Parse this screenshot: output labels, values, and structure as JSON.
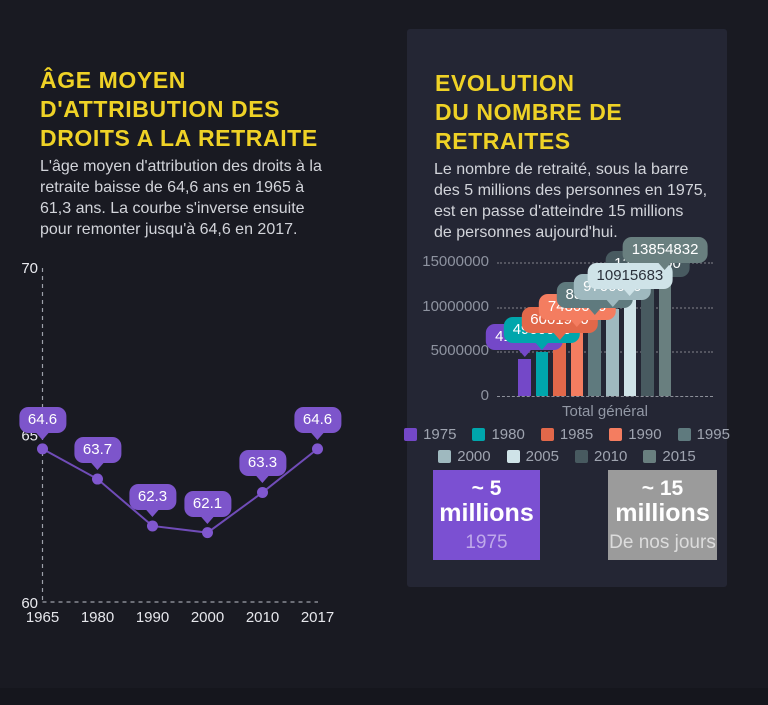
{
  "page": {
    "bg": "#191a22",
    "card_bg": "#242634",
    "footer_bg": "#15161d",
    "accent_yellow": "#efd226"
  },
  "left_section": {
    "title_lines": [
      "ÂGE MOYEN",
      "D'ATTRIBUTION DES",
      "DROITS A LA RETRAITE"
    ],
    "paragraph_lines": [
      "L'âge moyen d'attribution des droits à la",
      "retraite baisse de 64,6 ans en 1965 à",
      "61,3 ans. La courbe s'inverse ensuite",
      "pour remonter jusqu'à 64,6 en 2017."
    ]
  },
  "right_section": {
    "title_lines": [
      "EVOLUTION",
      "DU NOMBRE DE",
      "RETRAITES"
    ],
    "paragraph_lines": [
      "Le nombre de retraité, sous la barre",
      "des 5 millions des personnes en 1975,",
      "est en passe d'atteindre 15 millions",
      "de personnes aujourd'hui."
    ],
    "stat_boxes": [
      {
        "line1": "~ 5",
        "line2": "millions",
        "caption": "1975",
        "bg": "#7b50d2",
        "caption_color": "#bfa9ea"
      },
      {
        "line1": "~ 15",
        "line2": "millions",
        "caption": "De nos jours",
        "bg": "#9b9b9b",
        "caption_color": "#dcdcdc"
      }
    ]
  },
  "chart_data": [
    {
      "type": "line",
      "title": "Âge moyen d'attribution des droits à la retraite",
      "categories": [
        "1965",
        "1980",
        "1990",
        "2000",
        "2010",
        "2017"
      ],
      "values": [
        64.6,
        63.7,
        62.3,
        62.1,
        63.3,
        64.6
      ],
      "point_labels": [
        "64.6",
        "63.7",
        "62.3",
        "62.1",
        "63.3",
        "64.6"
      ],
      "yticks": [
        60,
        65,
        70
      ],
      "ylim": [
        60,
        70
      ],
      "line_color": "#7a52c9",
      "point_color": "#8057cf",
      "label_bg": "#7d55cb",
      "grid": "dashed-axes-only",
      "legend_position": "none"
    },
    {
      "type": "bar",
      "title": "Evolution du nombre de retraites",
      "categories": [
        "1975",
        "1980",
        "1985",
        "1990",
        "1995",
        "2000",
        "2005",
        "2010",
        "2015"
      ],
      "values": [
        4100000,
        4900000,
        6001900,
        7480000,
        8800000,
        9700000,
        10915683,
        12300000,
        13854832
      ],
      "value_labels": [
        "4100000",
        "4900000",
        "6001900",
        "7480000",
        "8800000",
        "9700000",
        "10915683",
        "12300000",
        "13854832"
      ],
      "colors": [
        "#7448c8",
        "#00a6ac",
        "#e2684a",
        "#f47d60",
        "#5f7a7e",
        "#9fb9bf",
        "#cfe3e8",
        "#485a60",
        "#697f7f"
      ],
      "xlabel": "Total général",
      "ylabel": "",
      "yticks": [
        0,
        5000000,
        10000000,
        15000000
      ],
      "ytick_labels": [
        "0",
        "5000000",
        "10000000",
        "15000000"
      ],
      "ylim": [
        0,
        16100000
      ],
      "grid": "dotted-horizontal",
      "legend_position": "bottom",
      "legend_rows": [
        [
          "1975",
          "1980",
          "1985",
          "1990",
          "1995"
        ],
        [
          "2000",
          "2005",
          "2010",
          "2015"
        ]
      ]
    }
  ]
}
